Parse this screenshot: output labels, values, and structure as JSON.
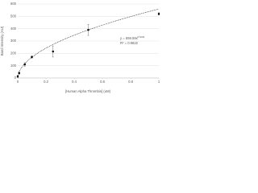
{
  "chart_data": {
    "type": "scatter",
    "x_label": "[Human Alpha Thrombin] (uM)",
    "y_label": "Band Intensity (AU)",
    "series": [
      {
        "name": "Band Intensity",
        "color": "#000000",
        "x": [
          0,
          0.01,
          0.05,
          0.1,
          0.25,
          0.5,
          1
        ],
        "values": [
          13,
          40,
          110,
          170,
          215,
          390,
          520
        ],
        "errors": [
          8,
          10,
          15,
          10,
          45,
          45,
          10
        ]
      }
    ],
    "trendline": {
      "a": 559.59,
      "b": 0.5209,
      "equation": "y = 559.59x",
      "exponent": "0.5209",
      "r2": "R² = 0.9822"
    },
    "xlim": [
      0,
      1
    ],
    "xticks": [
      0,
      0.2,
      0.4,
      0.6,
      0.8,
      1
    ],
    "ylim": [
      0,
      600
    ],
    "yticks": [
      0,
      100,
      200,
      300,
      400,
      500,
      600
    ],
    "grid": true
  }
}
